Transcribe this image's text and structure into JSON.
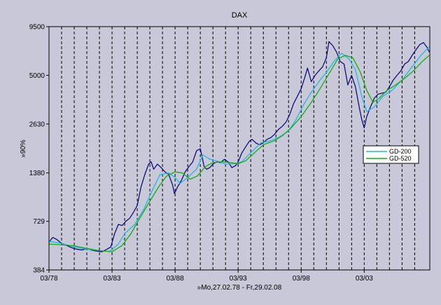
{
  "chart_data": {
    "type": "line",
    "title": "DAX",
    "xlabel": "»Mo,27.02.78 - Fr,29.02.08",
    "ylabel": "»90%",
    "y_scale": "log",
    "xlim": [
      1978.0,
      2008.2
    ],
    "ylim": [
      384,
      9500
    ],
    "x_ticks": [
      {
        "x": 1978,
        "label": "03/78"
      },
      {
        "x": 1983,
        "label": "03/83"
      },
      {
        "x": 1988,
        "label": "03/88"
      },
      {
        "x": 1993,
        "label": "03/93"
      },
      {
        "x": 1998,
        "label": "03/98"
      },
      {
        "x": 2003,
        "label": "03/03"
      }
    ],
    "y_ticks": [
      {
        "y": 384,
        "label": "384"
      },
      {
        "y": 729,
        "label": "729"
      },
      {
        "y": 1380,
        "label": "1380"
      },
      {
        "y": 2630,
        "label": "2630"
      },
      {
        "y": 5000,
        "label": "5000"
      },
      {
        "y": 9500,
        "label": "9500"
      }
    ],
    "vertical_gridlines_x": [
      1979,
      1980,
      1981,
      1982,
      1983,
      1984,
      1985,
      1986,
      1987,
      1988,
      1989,
      1990,
      1991,
      1992,
      1993,
      1994,
      1995,
      1996,
      1997,
      1998,
      1999,
      2000,
      2001,
      2002,
      2003,
      2004,
      2005,
      2006,
      2007
    ],
    "legend_position": "right",
    "series": [
      {
        "name": "",
        "color": "#00007a",
        "x": [
          1978.0,
          1978.3,
          1978.6,
          1979.0,
          1979.4,
          1979.8,
          1980.2,
          1980.6,
          1981.0,
          1981.4,
          1981.8,
          1982.2,
          1982.6,
          1982.9,
          1983.2,
          1983.5,
          1983.8,
          1984.1,
          1984.4,
          1984.7,
          1985.0,
          1985.3,
          1985.6,
          1985.9,
          1986.1,
          1986.3,
          1986.6,
          1986.9,
          1987.2,
          1987.5,
          1987.8,
          1987.95,
          1988.2,
          1988.5,
          1988.8,
          1989.1,
          1989.4,
          1989.7,
          1990.0,
          1990.3,
          1990.5,
          1990.75,
          1991.0,
          1991.3,
          1991.6,
          1991.9,
          1992.2,
          1992.5,
          1992.8,
          1993.0,
          1993.3,
          1993.6,
          1993.9,
          1994.1,
          1994.4,
          1994.7,
          1995.0,
          1995.3,
          1995.6,
          1995.9,
          1996.2,
          1996.5,
          1996.8,
          1997.1,
          1997.4,
          1997.7,
          1998.0,
          1998.3,
          1998.5,
          1998.8,
          1999.1,
          1999.4,
          1999.7,
          2000.0,
          2000.2,
          2000.5,
          2000.8,
          2001.1,
          2001.4,
          2001.7,
          2002.0,
          2002.3,
          2002.6,
          2002.8,
          2003.0,
          2003.2,
          2003.5,
          2003.8,
          2004.1,
          2004.4,
          2004.7,
          2005.0,
          2005.3,
          2005.6,
          2005.9,
          2006.2,
          2006.5,
          2006.8,
          2007.1,
          2007.4,
          2007.7,
          2008.0,
          2008.15
        ],
        "values": [
          555,
          590,
          575,
          545,
          530,
          515,
          505,
          500,
          508,
          498,
          492,
          488,
          505,
          520,
          620,
          700,
          690,
          730,
          760,
          820,
          900,
          1150,
          1350,
          1550,
          1600,
          1450,
          1550,
          1480,
          1400,
          1350,
          1180,
          1050,
          1150,
          1250,
          1400,
          1500,
          1600,
          1850,
          1900,
          1500,
          1450,
          1480,
          1550,
          1600,
          1580,
          1650,
          1600,
          1480,
          1520,
          1600,
          1800,
          1950,
          2100,
          2150,
          2050,
          2000,
          2050,
          2150,
          2200,
          2300,
          2450,
          2550,
          2700,
          3000,
          3450,
          3800,
          4200,
          4900,
          5500,
          4600,
          5000,
          5300,
          5600,
          6300,
          7800,
          7400,
          6800,
          6000,
          5800,
          4400,
          5000,
          4300,
          3300,
          2800,
          2500,
          2900,
          3300,
          3700,
          3900,
          3950,
          4000,
          4300,
          4700,
          5000,
          5300,
          5800,
          6000,
          6500,
          7000,
          7500,
          7700,
          7200,
          6800
        ]
      },
      {
        "name": "GD-200",
        "color": "#20b8e8",
        "x": [
          1978.0,
          1979.0,
          1980.0,
          1981.0,
          1982.0,
          1982.8,
          1983.5,
          1984.0,
          1984.8,
          1985.5,
          1986.2,
          1986.8,
          1987.5,
          1988.0,
          1988.4,
          1989.0,
          1989.7,
          1990.2,
          1990.8,
          1991.5,
          1992.0,
          1992.8,
          1993.3,
          1994.0,
          1994.8,
          1995.5,
          1996.2,
          1997.0,
          1997.6,
          1998.2,
          1998.8,
          1999.5,
          2000.0,
          2000.6,
          2001.2,
          2001.8,
          2002.3,
          2002.8,
          2003.2,
          2003.8,
          2004.5,
          2005.2,
          2006.0,
          2006.8,
          2007.5,
          2008.15
        ],
        "values": [
          560,
          545,
          520,
          505,
          495,
          490,
          540,
          620,
          700,
          850,
          1100,
          1350,
          1380,
          1300,
          1200,
          1300,
          1450,
          1750,
          1650,
          1600,
          1550,
          1560,
          1600,
          1800,
          2050,
          2100,
          2200,
          2400,
          2800,
          3400,
          4000,
          4700,
          5200,
          6000,
          6700,
          6200,
          5400,
          3800,
          3100,
          3300,
          3800,
          4100,
          4700,
          5600,
          6500,
          7300
        ]
      },
      {
        "name": "GD-520",
        "color": "#10b010",
        "x": [
          1978.0,
          1979.0,
          1980.0,
          1981.0,
          1982.0,
          1983.0,
          1983.8,
          1984.5,
          1985.2,
          1986.0,
          1986.7,
          1987.3,
          1988.0,
          1988.6,
          1989.2,
          1989.8,
          1990.4,
          1991.0,
          1991.7,
          1992.4,
          1993.0,
          1993.6,
          1994.3,
          1995.0,
          1995.8,
          1996.5,
          1997.2,
          1998.0,
          1998.8,
          1999.5,
          2000.2,
          2000.9,
          2001.5,
          2002.1,
          2002.7,
          2003.2,
          2003.7,
          2004.2,
          2004.8,
          2005.5,
          2006.2,
          2006.9,
          2007.6,
          2008.15
        ],
        "values": [
          540,
          535,
          528,
          510,
          495,
          488,
          530,
          620,
          760,
          950,
          1150,
          1320,
          1400,
          1380,
          1270,
          1330,
          1500,
          1580,
          1600,
          1580,
          1560,
          1620,
          1800,
          2000,
          2100,
          2250,
          2500,
          2900,
          3500,
          4200,
          5100,
          6200,
          6500,
          6300,
          5200,
          4100,
          3500,
          3700,
          4100,
          4400,
          4800,
          5300,
          6000,
          6500
        ]
      }
    ]
  }
}
